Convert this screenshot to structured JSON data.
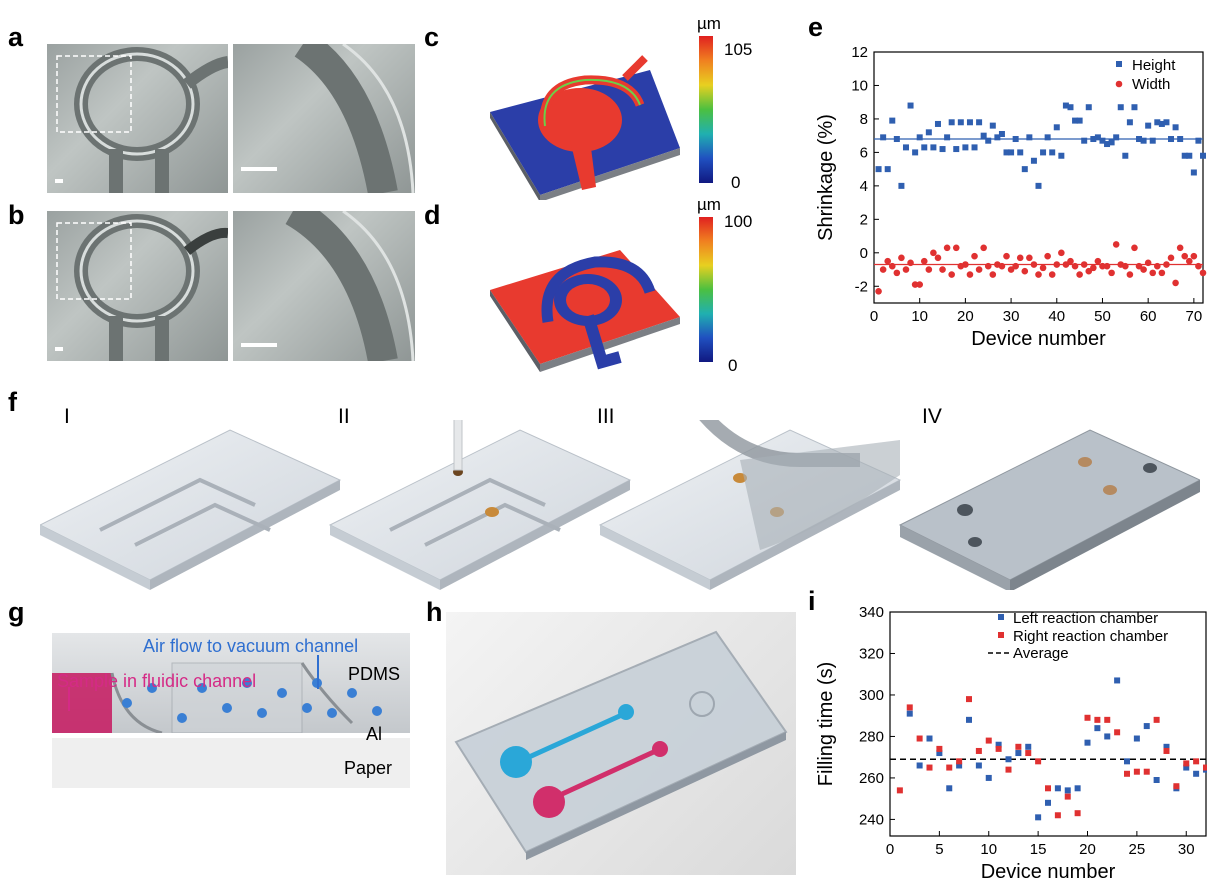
{
  "panels": {
    "a": "a",
    "b": "b",
    "c": "c",
    "d": "d",
    "e": "e",
    "f": "f",
    "g": "g",
    "h": "h",
    "i": "i"
  },
  "steps": [
    "I",
    "II",
    "III",
    "IV"
  ],
  "colorbar_c": {
    "unit": "µm",
    "max": "105",
    "min": "0"
  },
  "colorbar_d": {
    "unit": "µm",
    "max": "100",
    "min": "0"
  },
  "panel_g": {
    "air_flow": "Air flow to vacuum channel",
    "sample": "Sample in fluidic channel",
    "pdms": "PDMS",
    "al": "Al",
    "paper": "Paper"
  },
  "colors": {
    "height": "#2f5fb0",
    "width": "#e03131",
    "left": "#2f5fb0",
    "right": "#e03131",
    "blue_dye": "#2aa7d8",
    "pink_dye": "#d12f6b"
  },
  "chart_data": [
    {
      "type": "scatter",
      "panel": "e",
      "xlabel": "Device number",
      "ylabel": "Shrinkage (%)",
      "xlim": [
        0,
        72
      ],
      "ylim": [
        -3,
        12
      ],
      "xticks": [
        0,
        10,
        20,
        30,
        40,
        50,
        60,
        70
      ],
      "yticks": [
        -2,
        0,
        2,
        4,
        6,
        8,
        10,
        12
      ],
      "legend": "top-right",
      "series": [
        {
          "name": "Height",
          "x": [
            1,
            2,
            3,
            4,
            5,
            6,
            7,
            8,
            9,
            10,
            11,
            12,
            13,
            14,
            15,
            16,
            17,
            18,
            19,
            20,
            21,
            22,
            23,
            24,
            25,
            26,
            27,
            28,
            29,
            30,
            31,
            32,
            33,
            34,
            35,
            36,
            37,
            38,
            39,
            40,
            41,
            42,
            43,
            44,
            45,
            46,
            47,
            48,
            49,
            50,
            51,
            52,
            53,
            54,
            55,
            56,
            57,
            58,
            59,
            60,
            61,
            62,
            63,
            64,
            65,
            66,
            67,
            68,
            69,
            70,
            71,
            72
          ],
          "y": [
            5.0,
            6.9,
            5.0,
            7.9,
            6.8,
            4.0,
            6.3,
            8.8,
            6.0,
            6.9,
            6.3,
            7.2,
            6.3,
            7.7,
            6.2,
            6.9,
            7.8,
            6.2,
            7.8,
            6.3,
            7.8,
            6.3,
            7.8,
            7.0,
            6.7,
            7.6,
            6.9,
            7.1,
            6.0,
            6.0,
            6.8,
            6.0,
            5.0,
            6.9,
            5.5,
            4.0,
            6.0,
            6.9,
            6.0,
            7.5,
            5.8,
            8.8,
            8.7,
            7.9,
            7.9,
            6.7,
            8.7,
            6.8,
            6.9,
            6.7,
            6.5,
            6.6,
            6.9,
            8.7,
            5.8,
            7.8,
            8.7,
            6.8,
            6.7,
            7.6,
            6.7,
            7.8,
            7.7,
            7.8,
            6.8,
            7.5,
            6.8,
            5.8,
            5.8,
            4.8,
            6.7,
            5.8
          ]
        },
        {
          "name": "Width",
          "x": [
            1,
            2,
            3,
            4,
            5,
            6,
            7,
            8,
            9,
            10,
            11,
            12,
            13,
            14,
            15,
            16,
            17,
            18,
            19,
            20,
            21,
            22,
            23,
            24,
            25,
            26,
            27,
            28,
            29,
            30,
            31,
            32,
            33,
            34,
            35,
            36,
            37,
            38,
            39,
            40,
            41,
            42,
            43,
            44,
            45,
            46,
            47,
            48,
            49,
            50,
            51,
            52,
            53,
            54,
            55,
            56,
            57,
            58,
            59,
            60,
            61,
            62,
            63,
            64,
            65,
            66,
            67,
            68,
            69,
            70,
            71,
            72
          ],
          "y": [
            -2.3,
            -1.0,
            -0.5,
            -0.8,
            -1.2,
            -0.3,
            -1.0,
            -0.6,
            -1.9,
            -1.9,
            -0.5,
            -1.0,
            0.0,
            -0.3,
            -1.0,
            0.3,
            -1.3,
            0.3,
            -0.8,
            -0.7,
            -1.3,
            -0.2,
            -1.0,
            0.3,
            -0.8,
            -1.3,
            -0.7,
            -0.8,
            -0.2,
            -1.0,
            -0.8,
            -0.3,
            -1.1,
            -0.3,
            -0.7,
            -1.3,
            -0.9,
            -0.2,
            -1.3,
            -0.7,
            0.0,
            -0.7,
            -0.5,
            -0.8,
            -1.3,
            -0.7,
            -1.1,
            -0.9,
            -0.5,
            -0.8,
            -0.8,
            -1.2,
            0.5,
            -0.7,
            -0.8,
            -1.3,
            0.3,
            -0.8,
            -1.0,
            -0.6,
            -1.2,
            -0.8,
            -1.2,
            -0.7,
            -0.3,
            -1.8,
            0.3,
            -0.2,
            -0.5,
            -0.2,
            -0.8,
            -1.2
          ]
        }
      ],
      "averages": {
        "Height": 6.8,
        "Width": -0.7
      }
    },
    {
      "type": "scatter",
      "panel": "i",
      "xlabel": "Device number",
      "ylabel": "Filling time (s)",
      "xlim": [
        0,
        32
      ],
      "ylim": [
        232,
        340
      ],
      "xticks": [
        0,
        5,
        10,
        15,
        20,
        25,
        30
      ],
      "yticks": [
        240,
        260,
        280,
        300,
        320,
        340
      ],
      "legend": "top-right",
      "average_label": "Average",
      "average": 269,
      "series": [
        {
          "name": "Left reaction chamber",
          "x": [
            2,
            3,
            4,
            5,
            6,
            7,
            8,
            9,
            10,
            11,
            12,
            13,
            14,
            15,
            16,
            17,
            18,
            19,
            20,
            21,
            22,
            23,
            24,
            25,
            26,
            27,
            28,
            29,
            30,
            31,
            32
          ],
          "y": [
            291,
            266,
            279,
            272,
            255,
            266,
            288,
            266,
            260,
            276,
            269,
            272,
            275,
            241,
            248,
            255,
            254,
            255,
            277,
            284,
            280,
            307,
            268,
            279,
            285,
            259,
            275,
            255,
            265,
            262,
            264
          ]
        },
        {
          "name": "Right reaction chamber",
          "x": [
            1,
            2,
            3,
            4,
            5,
            6,
            7,
            8,
            9,
            10,
            11,
            12,
            13,
            14,
            15,
            16,
            17,
            18,
            19,
            20,
            21,
            22,
            23,
            24,
            25,
            26,
            27,
            28,
            29,
            30,
            31,
            32
          ],
          "y": [
            254,
            294,
            279,
            265,
            274,
            265,
            268,
            298,
            273,
            278,
            274,
            264,
            275,
            272,
            268,
            255,
            242,
            251,
            243,
            289,
            288,
            288,
            282,
            262,
            263,
            263,
            288,
            273,
            256,
            267,
            268,
            265
          ]
        }
      ]
    }
  ]
}
